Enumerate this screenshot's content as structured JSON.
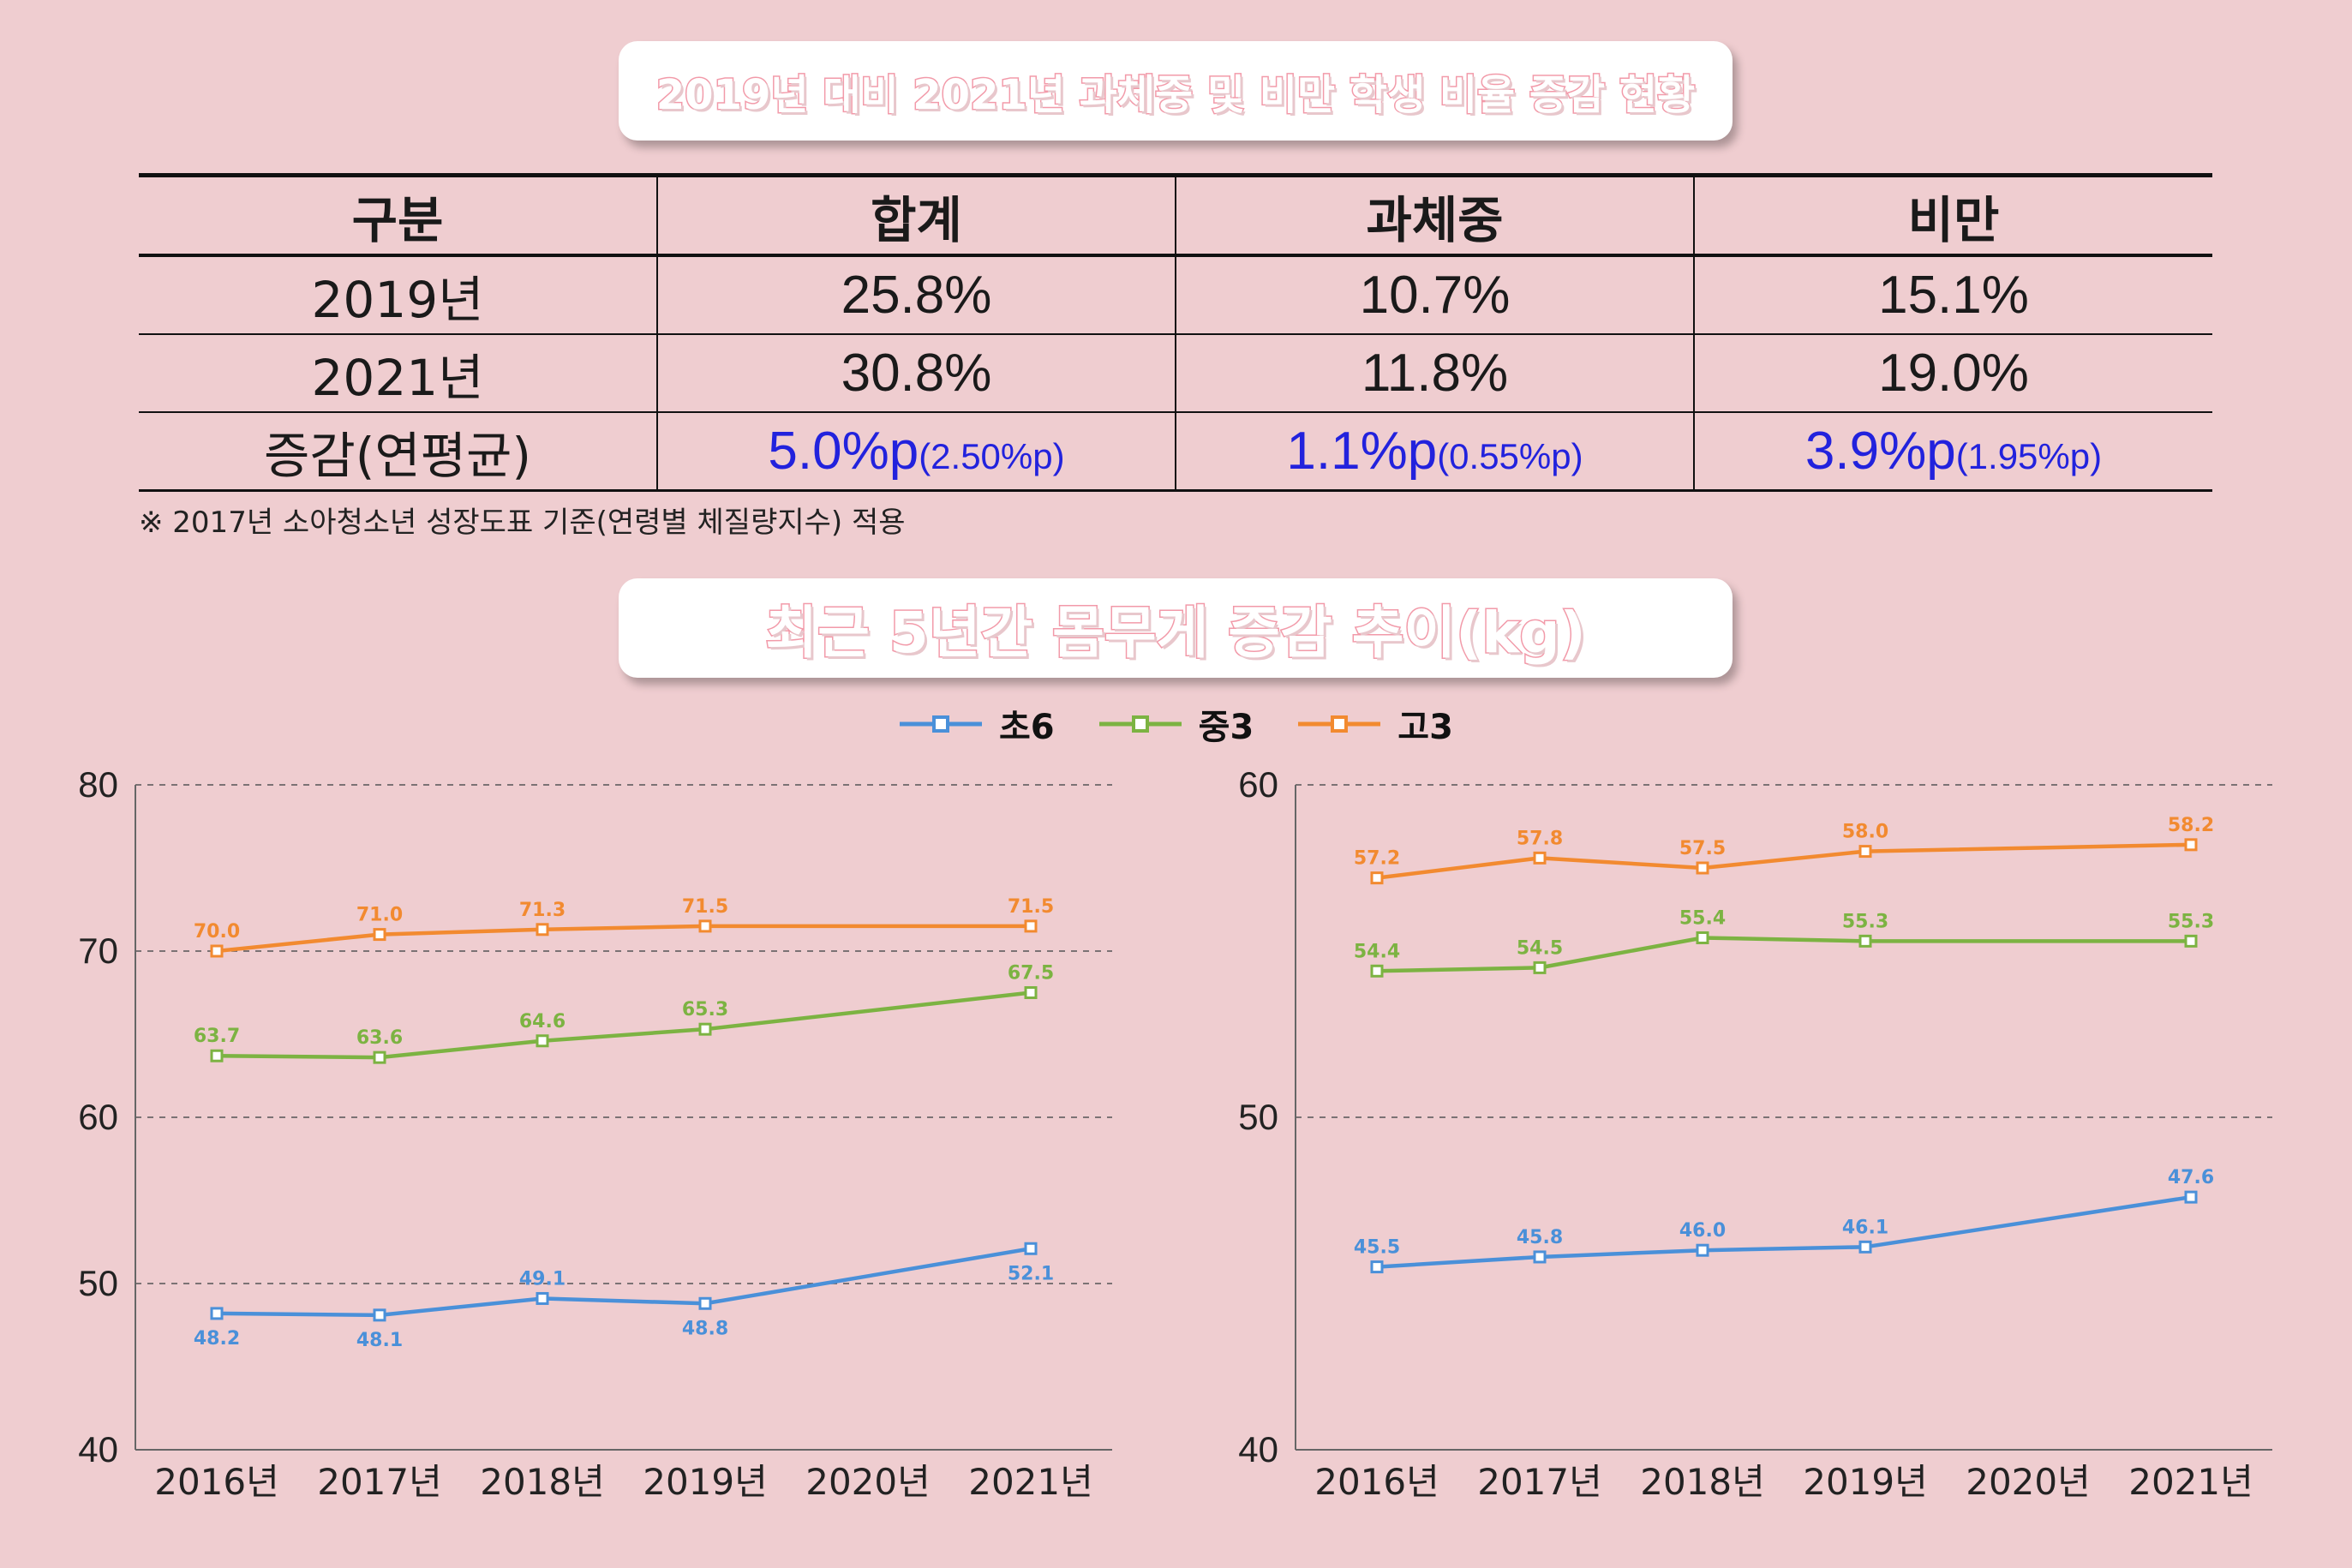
{
  "header1": "2019년 대비 2021년 과체중 및 비만 학생 비율 증감 현황",
  "header2": "최근 5년간 몸무게 증감 추이(kg)",
  "table": {
    "columns": [
      "구분",
      "합계",
      "과체중",
      "비만"
    ],
    "rows": [
      {
        "label": "2019년",
        "values": [
          "25.8%",
          "10.7%",
          "15.1%"
        ]
      },
      {
        "label": "2021년",
        "values": [
          "30.8%",
          "11.8%",
          "19.0%"
        ]
      }
    ],
    "change_row": {
      "label": "증감(연평균)",
      "values": [
        {
          "main": "5.0%p",
          "sub": "(2.50%p)"
        },
        {
          "main": "1.1%p",
          "sub": "(0.55%p)"
        },
        {
          "main": "3.9%p",
          "sub": "(1.95%p)"
        }
      ]
    }
  },
  "note": "※ 2017년 소아청소년 성장도표 기준(연령별 체질량지수) 적용",
  "colors": {
    "초6": "#4a90d9",
    "중3": "#7cb342",
    "고3": "#f28a30",
    "change_text": "#2222dd"
  },
  "legend": [
    "초6",
    "중3",
    "고3"
  ],
  "chart_data": [
    {
      "type": "line",
      "categories": [
        "2016년",
        "2017년",
        "2018년",
        "2019년",
        "2020년",
        "2021년"
      ],
      "ylim": [
        40,
        80
      ],
      "yticks": [
        40,
        50,
        60,
        70,
        80
      ],
      "grid": true,
      "series": [
        {
          "name": "초6",
          "values": [
            48.2,
            48.1,
            49.1,
            48.8,
            null,
            52.1
          ]
        },
        {
          "name": "중3",
          "values": [
            63.7,
            63.6,
            64.6,
            65.3,
            null,
            67.5
          ]
        },
        {
          "name": "고3",
          "values": [
            70.0,
            71.0,
            71.3,
            71.5,
            null,
            71.5
          ]
        }
      ]
    },
    {
      "type": "line",
      "categories": [
        "2016년",
        "2017년",
        "2018년",
        "2019년",
        "2020년",
        "2021년"
      ],
      "ylim": [
        40,
        60
      ],
      "yticks": [
        40,
        50,
        60
      ],
      "grid": true,
      "series": [
        {
          "name": "초6",
          "values": [
            45.5,
            45.8,
            46.0,
            46.1,
            null,
            47.6
          ]
        },
        {
          "name": "중3",
          "values": [
            54.4,
            54.5,
            55.4,
            55.3,
            null,
            55.3
          ]
        },
        {
          "name": "고3",
          "values": [
            57.2,
            57.8,
            57.5,
            58.0,
            null,
            58.2
          ]
        }
      ]
    }
  ]
}
